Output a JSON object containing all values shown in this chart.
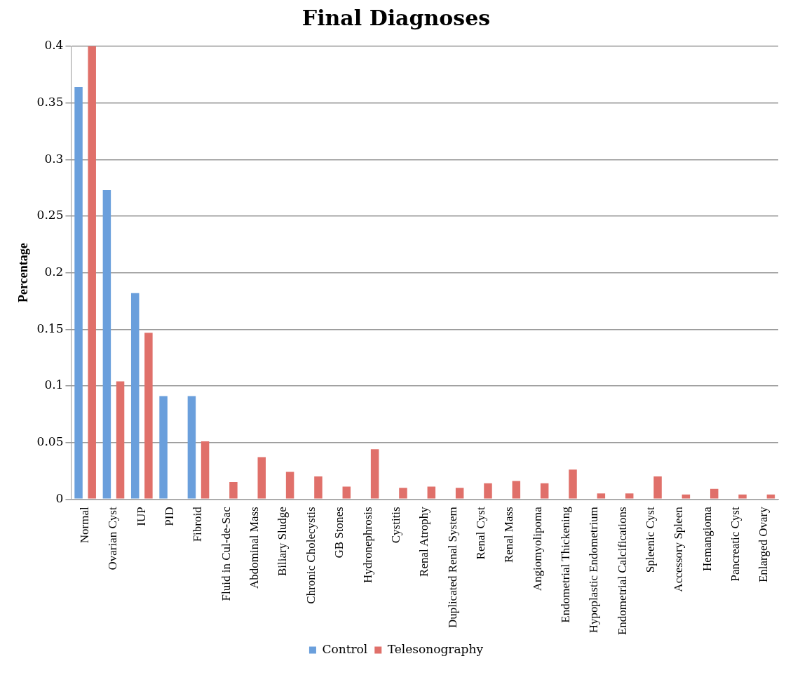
{
  "chart_data": {
    "type": "bar",
    "title": "Final Diagnoses",
    "ylabel": "Percentage",
    "categories": [
      "Normal",
      "Ovarian Cyst",
      "IUP",
      "PID",
      "Fibroid",
      "Fluid in Cul-de-Sac",
      "Abdominal Mass",
      "Biliary Sludge",
      "Chronic Cholecystis",
      "GB Stones",
      "Hydronephrosis",
      "Cystitis",
      "Renal Atrophy",
      "Duplicated Renal System",
      "Renal Cyst",
      "Renal Mass",
      "Angiomyolipoma",
      "Endometrial Thickening",
      "Hypoplastic Endometrium",
      "Endometrial Calcifications",
      "Spleenic Cyst",
      "Accessory Spleen",
      "Hemangioma",
      "Pancreatic Cyst",
      "Enlarged Ovary"
    ],
    "series": [
      {
        "name": "Control",
        "color": "#6a9fdc",
        "values": [
          0.364,
          0.273,
          0.182,
          0.091,
          0.091,
          0,
          0,
          0,
          0,
          0,
          0,
          0,
          0,
          0,
          0,
          0,
          0,
          0,
          0,
          0,
          0,
          0,
          0,
          0,
          0
        ]
      },
      {
        "name": "Telesonography",
        "color": "#e0706a",
        "values": [
          0.4,
          0.104,
          0.147,
          0,
          0.051,
          0.015,
          0.037,
          0.024,
          0.02,
          0.011,
          0.044,
          0.01,
          0.011,
          0.01,
          0.014,
          0.016,
          0.014,
          0.026,
          0.005,
          0.005,
          0.02,
          0.004,
          0.009,
          0.004,
          0.004
        ]
      }
    ],
    "ylim": [
      0,
      0.4
    ],
    "yticks": [
      0,
      0.05,
      0.1,
      0.15,
      0.2,
      0.25,
      0.3,
      0.35,
      0.4
    ],
    "grid": "y",
    "legend": "bottom"
  }
}
